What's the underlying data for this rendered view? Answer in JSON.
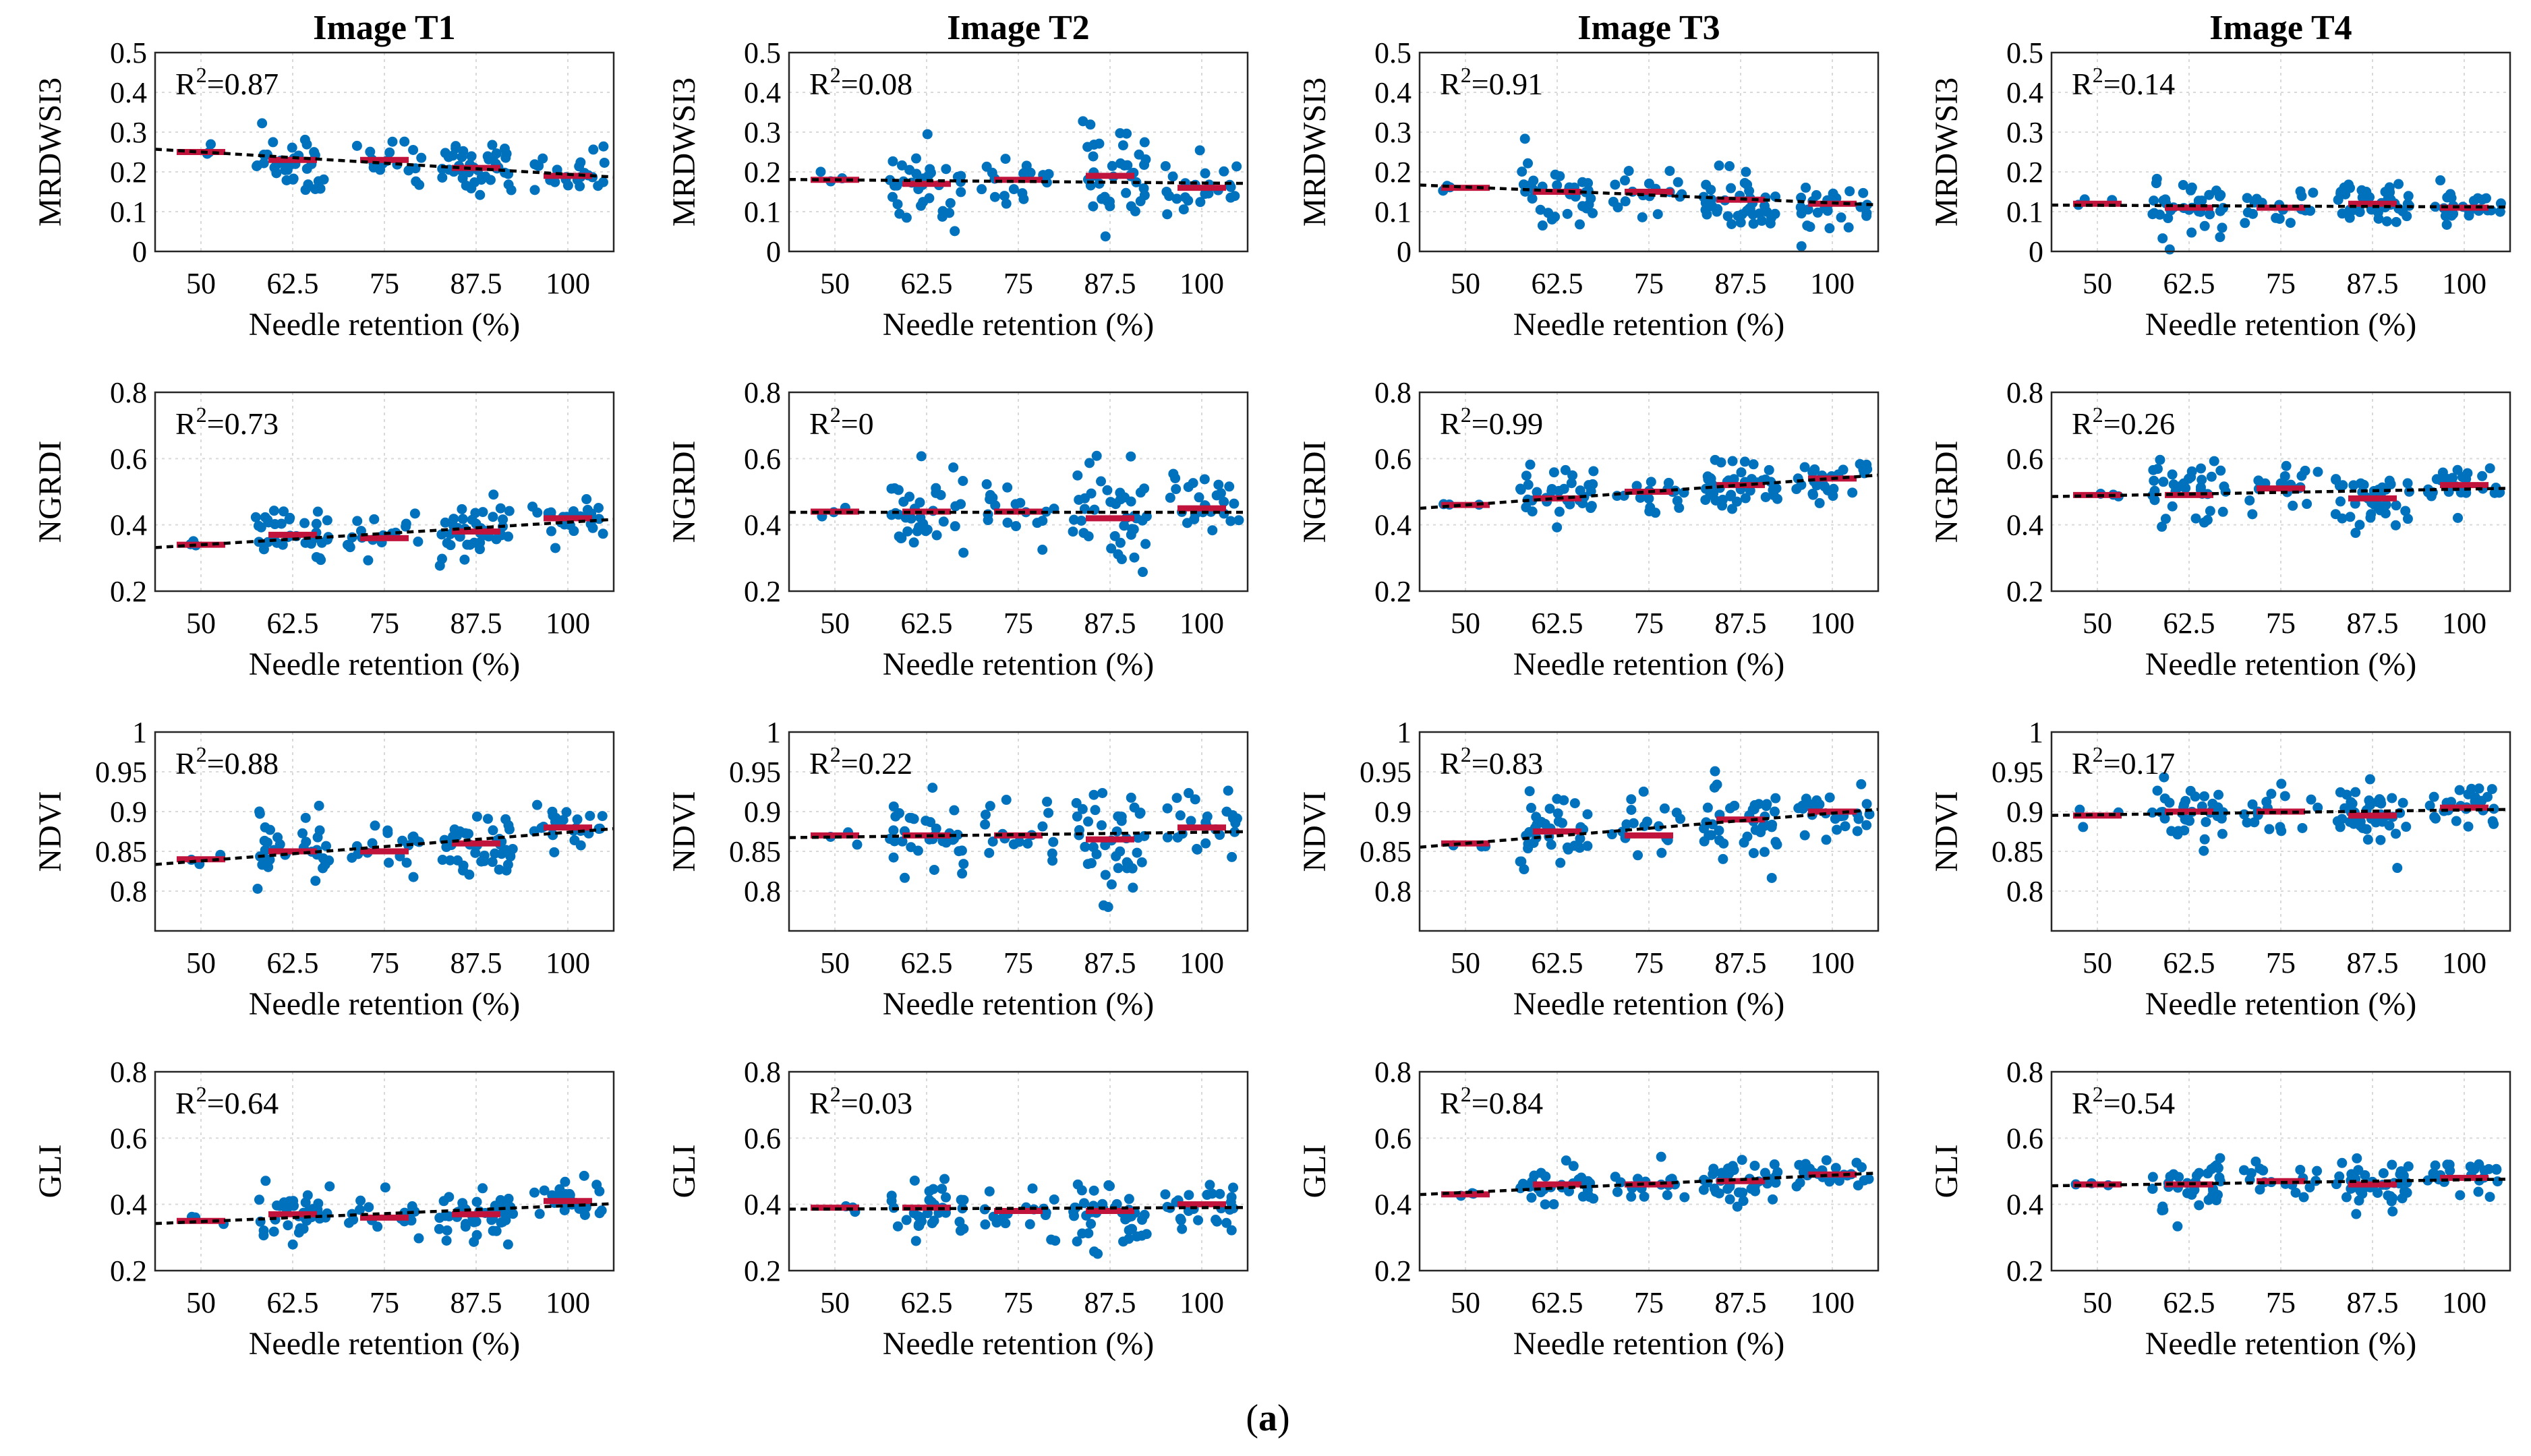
{
  "figure": {
    "caption": "(a)",
    "caption_parts": {
      "open": "(",
      "letter": "a",
      "close": ")"
    },
    "colors": {
      "points": "#0072bd",
      "means": "#c0143c",
      "trend": "#000000"
    },
    "columns": [
      "Image T1",
      "Image T2",
      "Image T3",
      "Image T4"
    ],
    "rows": [
      {
        "ylabel": "MRDWSI3",
        "ylim": [
          0,
          0.5
        ],
        "yticks": [
          "0",
          "0.1",
          "0.2",
          "0.3",
          "0.4",
          "0.5"
        ]
      },
      {
        "ylabel": "NGRDI",
        "ylim": [
          0.2,
          0.8
        ],
        "yticks": [
          "0.2",
          "0.4",
          "0.6",
          "0.8"
        ]
      },
      {
        "ylabel": "NDVI",
        "ylim": [
          0.75,
          1.0
        ],
        "yticks": [
          "0.8",
          "0.85",
          "0.9",
          "0.95",
          "1"
        ]
      },
      {
        "ylabel": "GLI",
        "ylim": [
          0.2,
          0.8
        ],
        "yticks": [
          "0.2",
          "0.4",
          "0.6",
          "0.8"
        ]
      }
    ],
    "xlabel": "Needle retention (%)",
    "xticks": [
      "50",
      "62.5",
      "75",
      "87.5",
      "100"
    ]
  },
  "chart_data": [
    {
      "type": "scatter",
      "row": 0,
      "col": 0,
      "title": "Image T1",
      "ylabel": "MRDWSI3",
      "xlabel": "Needle retention (%)",
      "categories": [
        "50",
        "62.5",
        "75",
        "87.5",
        "100"
      ],
      "ylim": [
        0,
        0.5
      ],
      "r2_label": "R",
      "r2_sup": "2",
      "r2_value": "=0.87",
      "means": [
        0.25,
        0.23,
        0.23,
        0.21,
        0.19
      ],
      "spread": [
        0.04,
        0.13,
        0.09,
        0.11,
        0.08
      ],
      "n": [
        3,
        36,
        18,
        42,
        26
      ]
    },
    {
      "type": "scatter",
      "row": 0,
      "col": 1,
      "title": "Image T2",
      "ylabel": "MRDWSI3",
      "xlabel": "Needle retention (%)",
      "categories": [
        "50",
        "62.5",
        "75",
        "87.5",
        "100"
      ],
      "ylim": [
        0,
        0.5
      ],
      "r2_label": "R",
      "r2_sup": "2",
      "r2_value": "=0.08",
      "means": [
        0.18,
        0.17,
        0.18,
        0.19,
        0.16
      ],
      "spread": [
        0.03,
        0.14,
        0.1,
        0.2,
        0.09
      ],
      "n": [
        3,
        36,
        18,
        42,
        26
      ]
    },
    {
      "type": "scatter",
      "row": 0,
      "col": 2,
      "title": "Image T3",
      "ylabel": "MRDWSI3",
      "xlabel": "Needle retention (%)",
      "categories": [
        "50",
        "62.5",
        "75",
        "87.5",
        "100"
      ],
      "ylim": [
        0,
        0.5
      ],
      "r2_label": "R",
      "r2_sup": "2",
      "r2_value": "=0.91",
      "means": [
        0.16,
        0.15,
        0.15,
        0.13,
        0.12
      ],
      "spread": [
        0.02,
        0.1,
        0.09,
        0.12,
        0.09
      ],
      "n": [
        3,
        36,
        18,
        42,
        26
      ]
    },
    {
      "type": "scatter",
      "row": 0,
      "col": 3,
      "title": "Image T4",
      "ylabel": "MRDWSI3",
      "xlabel": "Needle retention (%)",
      "categories": [
        "50",
        "62.5",
        "75",
        "87.5",
        "100"
      ],
      "ylim": [
        0,
        0.5
      ],
      "r2_label": "R",
      "r2_sup": "2",
      "r2_value": "=0.14",
      "means": [
        0.12,
        0.11,
        0.11,
        0.12,
        0.11
      ],
      "spread": [
        0.02,
        0.1,
        0.06,
        0.08,
        0.06
      ],
      "n": [
        3,
        36,
        18,
        42,
        26
      ]
    },
    {
      "type": "scatter",
      "row": 1,
      "col": 0,
      "title": "Image T1",
      "ylabel": "NGRDI",
      "xlabel": "Needle retention (%)",
      "categories": [
        "50",
        "62.5",
        "75",
        "87.5",
        "100"
      ],
      "ylim": [
        0.2,
        0.8
      ],
      "r2_label": "R",
      "r2_sup": "2",
      "r2_value": "=0.73",
      "means": [
        0.34,
        0.37,
        0.36,
        0.38,
        0.42
      ],
      "spread": [
        0.03,
        0.13,
        0.1,
        0.13,
        0.09
      ],
      "n": [
        3,
        36,
        18,
        42,
        26
      ]
    },
    {
      "type": "scatter",
      "row": 1,
      "col": 1,
      "title": "Image T2",
      "ylabel": "NGRDI",
      "xlabel": "Needle retention (%)",
      "categories": [
        "50",
        "62.5",
        "75",
        "87.5",
        "100"
      ],
      "ylim": [
        0.2,
        0.8
      ],
      "r2_label": "R",
      "r2_sup": "2",
      "r2_value": "=0",
      "means": [
        0.44,
        0.44,
        0.44,
        0.42,
        0.45
      ],
      "spread": [
        0.03,
        0.2,
        0.16,
        0.2,
        0.15
      ],
      "n": [
        3,
        36,
        18,
        42,
        26
      ]
    },
    {
      "type": "scatter",
      "row": 1,
      "col": 2,
      "title": "Image T3",
      "ylabel": "NGRDI",
      "xlabel": "Needle retention (%)",
      "categories": [
        "50",
        "62.5",
        "75",
        "87.5",
        "100"
      ],
      "ylim": [
        0.2,
        0.8
      ],
      "r2_label": "R",
      "r2_sup": "2",
      "r2_value": "=0.99",
      "means": [
        0.46,
        0.48,
        0.5,
        0.52,
        0.54
      ],
      "spread": [
        0.03,
        0.12,
        0.1,
        0.13,
        0.1
      ],
      "n": [
        3,
        36,
        18,
        42,
        26
      ]
    },
    {
      "type": "scatter",
      "row": 1,
      "col": 3,
      "title": "Image T4",
      "ylabel": "NGRDI",
      "xlabel": "Needle retention (%)",
      "categories": [
        "50",
        "62.5",
        "75",
        "87.5",
        "100"
      ],
      "ylim": [
        0.2,
        0.8
      ],
      "r2_label": "R",
      "r2_sup": "2",
      "r2_value": "=0.26",
      "means": [
        0.49,
        0.49,
        0.51,
        0.48,
        0.52
      ],
      "spread": [
        0.02,
        0.17,
        0.12,
        0.12,
        0.1
      ],
      "n": [
        3,
        36,
        18,
        42,
        26
      ]
    },
    {
      "type": "scatter",
      "row": 2,
      "col": 0,
      "title": "Image T1",
      "ylabel": "NDVI",
      "xlabel": "Needle retention (%)",
      "categories": [
        "50",
        "62.5",
        "75",
        "87.5",
        "100"
      ],
      "ylim": [
        0.75,
        1.0
      ],
      "r2_label": "R",
      "r2_sup": "2",
      "r2_value": "=0.88",
      "means": [
        0.84,
        0.85,
        0.85,
        0.86,
        0.88
      ],
      "spread": [
        0.02,
        0.07,
        0.05,
        0.05,
        0.04
      ],
      "n": [
        3,
        36,
        18,
        42,
        26
      ]
    },
    {
      "type": "scatter",
      "row": 2,
      "col": 1,
      "title": "Image T2",
      "ylabel": "NDVI",
      "xlabel": "Needle retention (%)",
      "categories": [
        "50",
        "62.5",
        "75",
        "87.5",
        "100"
      ],
      "ylim": [
        0.75,
        1.0
      ],
      "r2_label": "R",
      "r2_sup": "2",
      "r2_value": "=0.22",
      "means": [
        0.87,
        0.87,
        0.87,
        0.865,
        0.88
      ],
      "spread": [
        0.02,
        0.08,
        0.07,
        0.1,
        0.06
      ],
      "n": [
        3,
        36,
        18,
        42,
        26
      ]
    },
    {
      "type": "scatter",
      "row": 2,
      "col": 2,
      "title": "Image T3",
      "ylabel": "NDVI",
      "xlabel": "Needle retention (%)",
      "categories": [
        "50",
        "62.5",
        "75",
        "87.5",
        "100"
      ],
      "ylim": [
        0.75,
        1.0
      ],
      "r2_label": "R",
      "r2_sup": "2",
      "r2_value": "=0.83",
      "means": [
        0.86,
        0.875,
        0.87,
        0.89,
        0.9
      ],
      "spread": [
        0.01,
        0.07,
        0.06,
        0.07,
        0.06
      ],
      "n": [
        3,
        36,
        18,
        42,
        26
      ]
    },
    {
      "type": "scatter",
      "row": 2,
      "col": 3,
      "title": "Image T4",
      "ylabel": "NDVI",
      "xlabel": "Needle retention (%)",
      "categories": [
        "50",
        "62.5",
        "75",
        "87.5",
        "100"
      ],
      "ylim": [
        0.75,
        1.0
      ],
      "r2_label": "R",
      "r2_sup": "2",
      "r2_value": "=0.17",
      "means": [
        0.895,
        0.9,
        0.9,
        0.895,
        0.905
      ],
      "spread": [
        0.02,
        0.05,
        0.04,
        0.05,
        0.04
      ],
      "n": [
        3,
        36,
        18,
        42,
        26
      ]
    },
    {
      "type": "scatter",
      "row": 3,
      "col": 0,
      "title": "Image T1",
      "ylabel": "GLI",
      "xlabel": "Needle retention (%)",
      "categories": [
        "50",
        "62.5",
        "75",
        "87.5",
        "100"
      ],
      "ylim": [
        0.2,
        0.8
      ],
      "r2_label": "R",
      "r2_sup": "2",
      "r2_value": "=0.64",
      "means": [
        0.35,
        0.37,
        0.36,
        0.37,
        0.41
      ],
      "spread": [
        0.03,
        0.12,
        0.08,
        0.1,
        0.08
      ],
      "n": [
        3,
        36,
        18,
        42,
        26
      ]
    },
    {
      "type": "scatter",
      "row": 3,
      "col": 1,
      "title": "Image T2",
      "ylabel": "GLI",
      "xlabel": "Needle retention (%)",
      "categories": [
        "50",
        "62.5",
        "75",
        "87.5",
        "100"
      ],
      "ylim": [
        0.2,
        0.8
      ],
      "r2_label": "R",
      "r2_sup": "2",
      "r2_value": "=0.03",
      "means": [
        0.39,
        0.39,
        0.38,
        0.38,
        0.4
      ],
      "spread": [
        0.02,
        0.14,
        0.1,
        0.14,
        0.1
      ],
      "n": [
        3,
        36,
        18,
        42,
        26
      ]
    },
    {
      "type": "scatter",
      "row": 3,
      "col": 2,
      "title": "Image T3",
      "ylabel": "GLI",
      "xlabel": "Needle retention (%)",
      "categories": [
        "50",
        "62.5",
        "75",
        "87.5",
        "100"
      ],
      "ylim": [
        0.2,
        0.8
      ],
      "r2_label": "R",
      "r2_sup": "2",
      "r2_value": "=0.84",
      "means": [
        0.43,
        0.46,
        0.46,
        0.47,
        0.49
      ],
      "spread": [
        0.02,
        0.08,
        0.07,
        0.07,
        0.06
      ],
      "n": [
        3,
        36,
        18,
        42,
        26
      ]
    },
    {
      "type": "scatter",
      "row": 3,
      "col": 3,
      "title": "Image T4",
      "ylabel": "GLI",
      "xlabel": "Needle retention (%)",
      "categories": [
        "50",
        "62.5",
        "75",
        "87.5",
        "100"
      ],
      "ylim": [
        0.2,
        0.8
      ],
      "r2_label": "R",
      "r2_sup": "2",
      "r2_value": "=0.54",
      "means": [
        0.46,
        0.46,
        0.47,
        0.46,
        0.48
      ],
      "spread": [
        0.01,
        0.12,
        0.09,
        0.1,
        0.07
      ],
      "n": [
        3,
        36,
        18,
        42,
        26
      ]
    }
  ]
}
